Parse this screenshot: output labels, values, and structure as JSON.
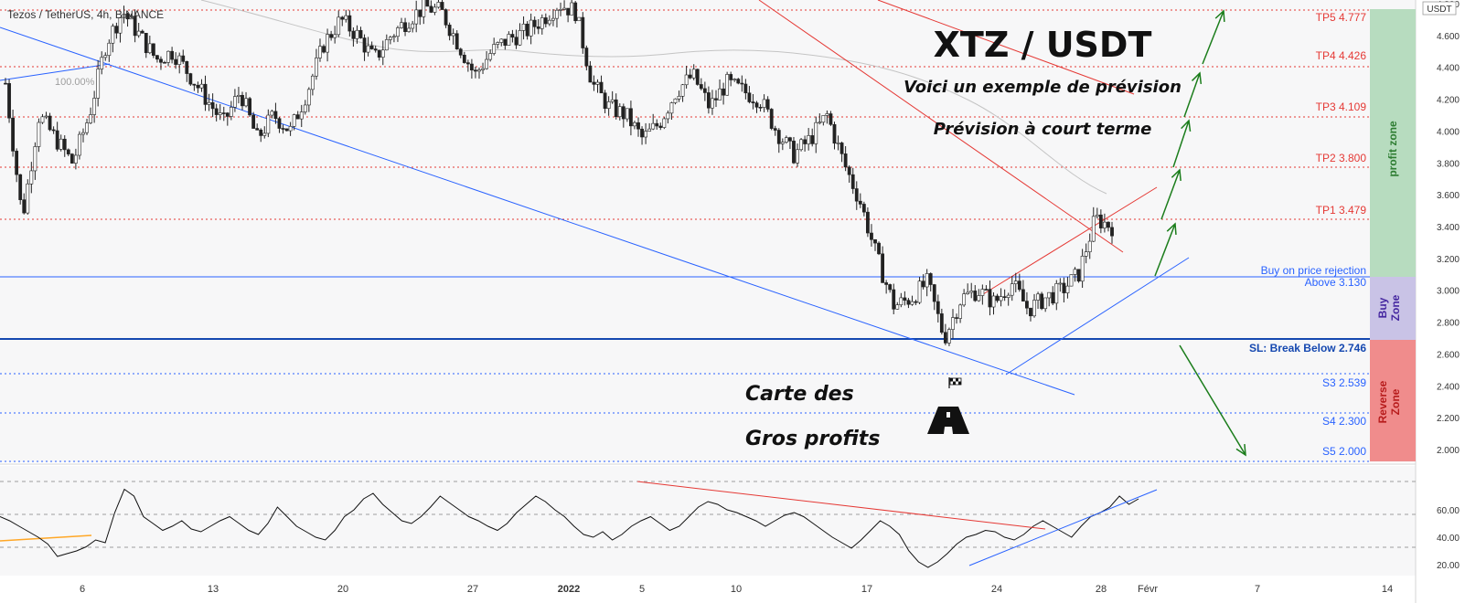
{
  "header": {
    "symbol_line": "Tezos / TetherUS, 4h, BINANCE",
    "currency": "USDT",
    "pct_label": "100.00%"
  },
  "annotations": {
    "title": "XTZ / USDT",
    "subtitle1": "Voici un exemple de prévision",
    "subtitle2": "Prévision à court terme",
    "carte1": "Carte des",
    "carte2": "Gros profits",
    "flag_icon": "chequered-flag-icon",
    "road_icon": "road-icon"
  },
  "levels": {
    "tp5": "TP5 4.777",
    "tp4": "TP4 4.426",
    "tp3": "TP3 4.109",
    "tp2": "TP2 3.800",
    "tp1": "TP1 3.479",
    "buy1": "Buy on price rejection",
    "buy2": "Above 3.130",
    "sl": "SL: Break Below 2.746",
    "s3": "S3 2.539",
    "s4": "S4 2.300",
    "s5": "S5 2.000"
  },
  "zones": {
    "profit": "profit zone",
    "buy": "Buy Zone",
    "reverse": "Reverse Zone",
    "profit_color": "#b7dcbf",
    "buy_color": "#c9c3e6",
    "reverse_color": "#f08c8c"
  },
  "chart_data": [
    {
      "type": "candlestick",
      "title": "Tezos / TetherUS, 4h, BINANCE",
      "y_axis_ticks": [
        "4.800",
        "4.600",
        "4.400",
        "4.200",
        "4.000",
        "3.800",
        "3.600",
        "3.400",
        "3.200",
        "3.000",
        "2.800",
        "2.600",
        "2.400",
        "2.200",
        "2.000"
      ],
      "x_axis_ticks": [
        "6",
        "13",
        "20",
        "27",
        "2022",
        "5",
        "10",
        "17",
        "24",
        "28",
        "Févr",
        "7",
        "14"
      ],
      "ylim": [
        2.0,
        4.8
      ],
      "horizontal_levels": [
        {
          "label": "TP5",
          "value": 4.777,
          "color": "#e53935"
        },
        {
          "label": "TP4",
          "value": 4.426,
          "color": "#e53935"
        },
        {
          "label": "TP3",
          "value": 4.109,
          "color": "#e53935"
        },
        {
          "label": "TP2",
          "value": 3.8,
          "color": "#e53935"
        },
        {
          "label": "TP1",
          "value": 3.479,
          "color": "#e53935"
        },
        {
          "label": "Buy",
          "value": 3.13,
          "color": "#2962ff"
        },
        {
          "label": "SL",
          "value": 2.746,
          "color": "#1548b0"
        },
        {
          "label": "S3",
          "value": 2.539,
          "color": "#2962ff"
        },
        {
          "label": "S4",
          "value": 2.3,
          "color": "#2962ff"
        },
        {
          "label": "S5",
          "value": 2.0,
          "color": "#2962ff"
        }
      ],
      "close_path": [
        4.3,
        3.45,
        4.1,
        3.95,
        3.8,
        4.1,
        4.55,
        4.75,
        4.6,
        4.45,
        4.5,
        4.35,
        4.2,
        4.05,
        4.25,
        3.95,
        4.1,
        4.0,
        4.25,
        4.55,
        4.7,
        4.6,
        4.45,
        4.6,
        4.7,
        4.78,
        4.75,
        4.55,
        4.35,
        4.5,
        4.58,
        4.62,
        4.7,
        4.8,
        4.75,
        4.3,
        4.15,
        4.1,
        3.95,
        4.05,
        4.25,
        4.35,
        4.15,
        4.3,
        4.25,
        4.2,
        4.0,
        3.85,
        3.95,
        4.1,
        3.8,
        3.55,
        3.2,
        2.9,
        2.95,
        3.05,
        2.7,
        2.95,
        3.0,
        2.92,
        3.05,
        2.88,
        2.95,
        3.0,
        3.1,
        3.45,
        3.4
      ],
      "last_price": 3.4,
      "ema_series_color": "#bdbdbd"
    },
    {
      "type": "line",
      "title": "",
      "y_axis_ticks": [
        "60.00",
        "40.00",
        "20.00"
      ],
      "ylim": [
        10,
        80
      ],
      "values": [
        55,
        52,
        48,
        44,
        40,
        35,
        26,
        28,
        30,
        33,
        38,
        36,
        58,
        75,
        70,
        55,
        50,
        45,
        48,
        52,
        46,
        44,
        48,
        52,
        55,
        50,
        45,
        42,
        50,
        62,
        55,
        48,
        44,
        40,
        38,
        45,
        55,
        60,
        68,
        72,
        64,
        58,
        52,
        50,
        55,
        62,
        70,
        65,
        60,
        55,
        52,
        48,
        45,
        50,
        58,
        64,
        70,
        66,
        60,
        55,
        48,
        42,
        40,
        44,
        38,
        42,
        48,
        52,
        55,
        50,
        45,
        48,
        55,
        62,
        66,
        64,
        60,
        58,
        55,
        52,
        48,
        52,
        56,
        58,
        55,
        50,
        45,
        40,
        36,
        32,
        38,
        45,
        52,
        48,
        42,
        30,
        22,
        18,
        22,
        28,
        35,
        40,
        42,
        45,
        44,
        40,
        38,
        42,
        48,
        52,
        48,
        44,
        40,
        48,
        55,
        58,
        62,
        70,
        64,
        68
      ]
    }
  ]
}
